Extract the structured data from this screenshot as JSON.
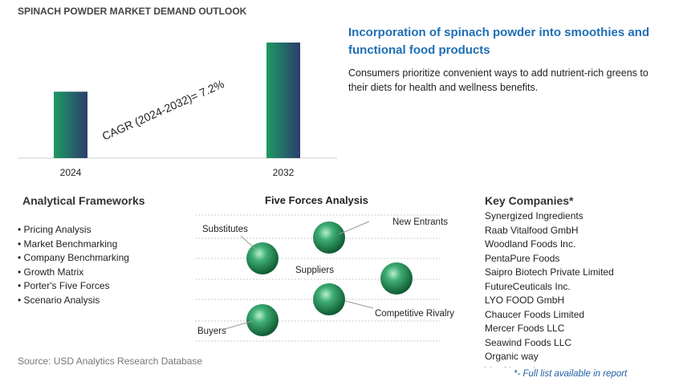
{
  "chart_data": {
    "type": "bar",
    "title": "SPINACH POWDER MARKET DEMAND OUTLOOK",
    "categories": [
      "2024",
      "2032"
    ],
    "values": [
      1,
      1.74
    ],
    "colors": [
      "#1e9a62",
      "#2c3d6e"
    ],
    "annotation": "CAGR (2024-2032)=   7.2%"
  },
  "highlight": {
    "title": "Incorporation of spinach powder into smoothies and functional food products",
    "text": "Consumers prioritize convenient ways to add nutrient-rich greens to their diets for health and wellness benefits."
  },
  "frameworks": {
    "title": "Analytical Frameworks",
    "items": [
      "Pricing Analysis",
      "Market Benchmarking",
      "Company Benchmarking",
      "Growth Matrix",
      "Porter's Five Forces",
      "Scenario Analysis"
    ]
  },
  "five_forces": {
    "title": "Five Forces Analysis",
    "labels": [
      "Substitutes",
      "New Entrants",
      "Suppliers",
      "Competitive Rivalry",
      "Buyers"
    ]
  },
  "companies": {
    "title": "Key Companies*",
    "items": [
      "Synergized Ingredients",
      "Raab Vitalfood GmbH",
      "Woodland Foods Inc.",
      "PentaPure Foods",
      "Saipro Biotech Private Limited",
      "FutureCeuticals Inc.",
      "LYO FOOD GmbH",
      "Chaucer Foods Limited",
      "Mercer Foods LLC",
      "Seawind Foods LLC",
      "Organic way",
      "Vee Natural"
    ],
    "note": "*- Full list available in report"
  },
  "source": "Source: USD Analytics Research Database"
}
